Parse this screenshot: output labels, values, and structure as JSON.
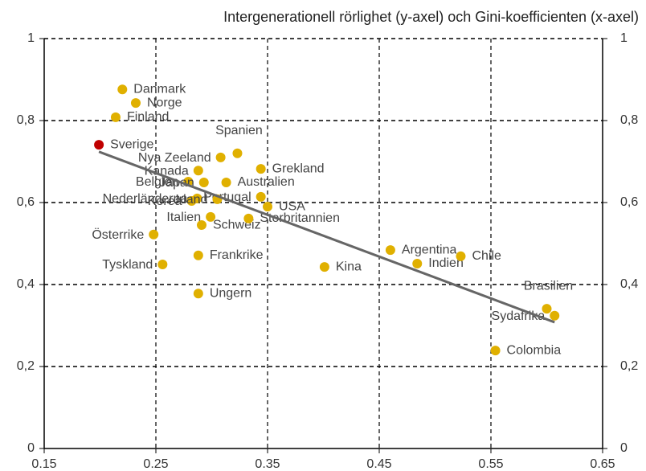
{
  "chart_data": {
    "type": "scatter",
    "title": "Intergenerationell rörlighet (y-axel) och Gini-koefficienten (x-axel)",
    "labels": [
      "Danmark",
      "Norge",
      "Finland",
      "Sverige",
      "Spanien",
      "Nya Zeeland",
      "Kanada",
      "Grekland",
      "Belgien",
      "Japan",
      "Australien",
      "Nederländerna",
      "Portugal",
      "Korea",
      "Irland",
      "USA",
      "Italien",
      "Schweiz",
      "Storbritannien",
      "Österrike",
      "Frankrike",
      "Tyskland",
      "Ungern",
      "Kina",
      "Argentina",
      "Indien",
      "Chile",
      "Brasilien",
      "Sydafrika",
      "Colombia"
    ],
    "x": [
      0.22,
      0.232,
      0.214,
      0.199,
      0.323,
      0.308,
      0.288,
      0.344,
      0.279,
      0.293,
      0.313,
      0.287,
      0.344,
      0.282,
      0.305,
      0.35,
      0.299,
      0.291,
      0.333,
      0.248,
      0.288,
      0.256,
      0.288,
      0.401,
      0.46,
      0.484,
      0.523,
      0.6,
      0.607,
      0.554
    ],
    "y": [
      0.876,
      0.843,
      0.808,
      0.741,
      0.72,
      0.71,
      0.678,
      0.682,
      0.651,
      0.649,
      0.649,
      0.61,
      0.614,
      0.604,
      0.608,
      0.59,
      0.565,
      0.545,
      0.561,
      0.522,
      0.471,
      0.449,
      0.378,
      0.443,
      0.484,
      0.451,
      0.469,
      0.341,
      0.324,
      0.239
    ],
    "colors": [
      "#e0b000",
      "#e0b000",
      "#e0b000",
      "#c00000",
      "#e0b000",
      "#e0b000",
      "#e0b000",
      "#e0b000",
      "#e0b000",
      "#e0b000",
      "#e0b000",
      "#e0b000",
      "#e0b000",
      "#e0b000",
      "#e0b000",
      "#e0b000",
      "#e0b000",
      "#e0b000",
      "#e0b000",
      "#e0b000",
      "#e0b000",
      "#e0b000",
      "#e0b000",
      "#e0b000",
      "#e0b000",
      "#e0b000",
      "#e0b000",
      "#e0b000",
      "#e0b000",
      "#e0b000"
    ],
    "trend": {
      "x": [
        0.199,
        0.607
      ],
      "y": [
        0.724,
        0.308
      ],
      "color": "#666666"
    },
    "xlim": [
      0.15,
      0.65
    ],
    "xticks": [
      0.15,
      0.25,
      0.35,
      0.45,
      0.55,
      0.65
    ],
    "ylim": [
      0,
      1
    ],
    "yticks": [
      0,
      {
        "value": 0.2,
        "label": "0,2"
      },
      {
        "value": 0.4,
        "label": "0,4"
      },
      {
        "value": 0.6,
        "label": "0,6"
      },
      {
        "value": 0.8,
        "label": "0,8"
      },
      1
    ],
    "y2lim": [
      0,
      1
    ],
    "y2ticks": [
      0,
      {
        "value": 0.2,
        "label": "0,2"
      },
      {
        "value": 0.4,
        "label": "0,4"
      },
      {
        "value": 0.6,
        "label": "0,6"
      },
      {
        "value": 0.8,
        "label": "0,8"
      },
      1
    ],
    "grid": true
  }
}
